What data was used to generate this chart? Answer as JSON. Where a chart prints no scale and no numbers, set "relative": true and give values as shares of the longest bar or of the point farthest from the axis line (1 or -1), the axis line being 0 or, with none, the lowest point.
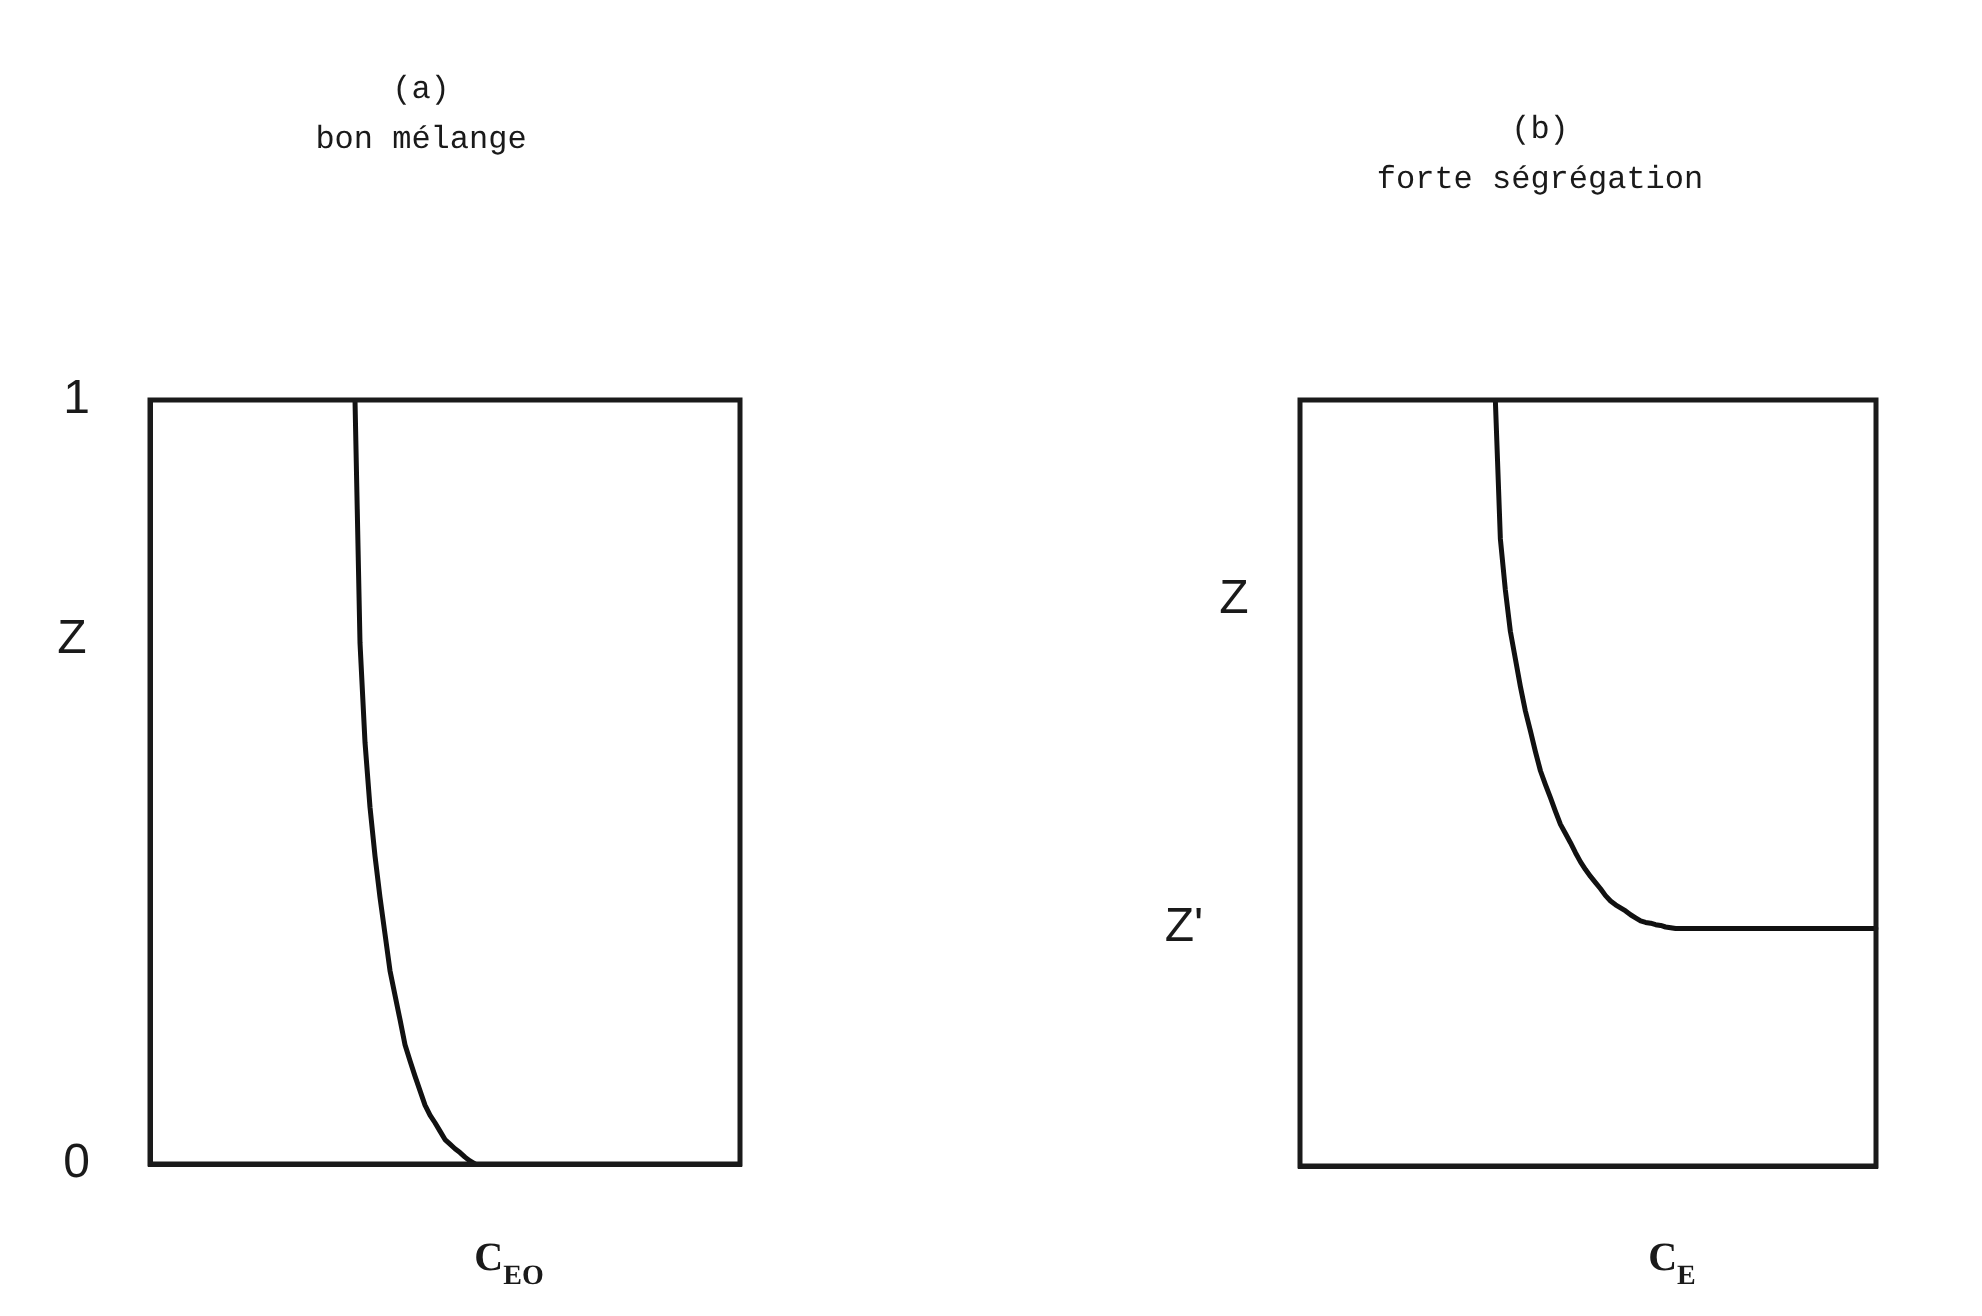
{
  "chart_data": [
    {
      "type": "line",
      "title": "(a)",
      "subtitle": "bon mélange",
      "xlabel": "C$_{EO}$",
      "ylabel": "Z",
      "categories": [
        null,
        null,
        null,
        null,
        null,
        null,
        null,
        null,
        null,
        null,
        null,
        null,
        null,
        null,
        null,
        null,
        null,
        null,
        null,
        null,
        null,
        null,
        null,
        null,
        null,
        null,
        null,
        null,
        null,
        null,
        null,
        null,
        null,
        null,
        null,
        null,
        null,
        null,
        null,
        null,
        null,
        null,
        null,
        null,
        null,
        null,
        null,
        null,
        null,
        null,
        null,
        null,
        null,
        null,
        null,
        null,
        null,
        null,
        null,
        null,
        null,
        null,
        null,
        null,
        null,
        null,
        null,
        null,
        null,
        null,
        null,
        null,
        null,
        null,
        null,
        null,
        null,
        null,
        null,
        null,
        null,
        null,
        null,
        null,
        null,
        null,
        null,
        null,
        null,
        null,
        null,
        null,
        null,
        null,
        null,
        null,
        null,
        null,
        null,
        null,
        null,
        null,
        null,
        null,
        null,
        null,
        null,
        null,
        null,
        null,
        null,
        null,
        null,
        null,
        null,
        null,
        null,
        null,
        null
      ],
      "values": [
        null,
        null,
        null,
        null,
        null,
        null,
        null,
        null,
        null,
        null,
        null,
        null,
        null,
        null,
        null,
        null,
        null,
        null,
        null,
        null,
        null,
        null,
        null,
        null,
        null,
        null,
        null,
        null,
        null,
        null,
        null,
        null,
        null,
        null,
        null,
        null,
        null,
        null,
        null,
        null,
        null,
        1,
        0.682,
        0.552,
        0.467,
        0.403,
        0.349,
        0.301,
        0.253,
        0.221,
        0.189,
        0.156,
        0.135,
        0.115,
        0.096,
        0.077,
        0.064,
        0.054,
        0.043,
        0.032,
        0.026,
        0.02,
        0.015,
        0.009,
        0.004,
        0,
        null,
        null,
        null,
        null,
        null,
        null,
        null,
        null,
        null,
        null,
        null,
        null,
        null,
        null,
        null,
        null,
        null,
        null,
        null,
        null,
        null,
        null,
        null,
        null,
        null,
        null,
        null,
        null,
        null,
        null,
        null,
        null,
        null,
        null,
        null,
        null,
        null,
        null,
        null,
        null,
        null,
        null,
        null,
        null,
        null,
        null,
        null,
        null,
        null,
        null,
        null,
        null,
        null
      ],
      "color": "#111111",
      "ylim": [
        0,
        1
      ],
      "yticks": [
        0,
        1
      ]
    },
    {
      "type": "line",
      "title": "(b)",
      "subtitle": "forte ségrégation",
      "xlabel": "C$_{E}$",
      "ylabel": "Z",
      "categories": [
        null,
        null,
        null,
        null,
        null,
        null,
        null,
        null,
        null,
        null,
        null,
        null,
        null,
        null,
        null,
        null,
        null,
        null,
        null,
        null,
        null,
        null,
        null,
        null,
        null,
        null,
        null,
        null,
        null,
        null,
        null,
        null,
        null,
        null,
        null,
        null,
        null,
        null,
        null,
        null,
        null,
        null,
        null,
        null,
        null,
        null,
        null,
        null,
        null,
        null,
        null,
        null,
        null,
        null,
        null,
        null,
        null,
        null,
        null,
        null,
        null,
        null,
        null,
        null,
        null,
        null,
        null,
        null,
        null,
        null,
        null,
        null,
        null,
        null,
        null,
        null,
        null,
        null,
        null,
        null,
        null,
        null,
        null,
        null,
        null,
        null,
        null,
        null,
        null,
        null,
        null,
        null,
        null,
        null,
        null,
        null,
        null,
        null,
        null,
        null,
        null,
        null,
        null,
        null,
        null,
        null,
        null,
        null,
        null,
        null,
        null,
        null,
        null,
        null,
        null,
        null
      ],
      "values": [
        null,
        null,
        null,
        null,
        null,
        null,
        null,
        null,
        null,
        null,
        null,
        null,
        null,
        null,
        null,
        null,
        null,
        null,
        null,
        null,
        null,
        null,
        null,
        null,
        null,
        null,
        null,
        null,
        null,
        null,
        null,
        null,
        null,
        null,
        null,
        null,
        null,
        null,
        null,
        1,
        0.819,
        0.752,
        0.698,
        0.662,
        0.626,
        0.594,
        0.568,
        0.541,
        0.516,
        0.498,
        0.481,
        0.463,
        0.446,
        0.434,
        0.422,
        0.409,
        0.397,
        0.387,
        0.378,
        0.37,
        0.362,
        0.353,
        0.346,
        0.341,
        0.337,
        0.333,
        0.328,
        0.324,
        0.32,
        0.318,
        0.317,
        0.315,
        0.314,
        0.312,
        0.311,
        0.31,
        0.31,
        0.31,
        0.31,
        0.31,
        0.31,
        0.31,
        0.31,
        0.31,
        0.31,
        0.31,
        0.31,
        0.31,
        0.31,
        0.31,
        0.31,
        0.31,
        0.31,
        0.31,
        0.31,
        0.31,
        0.31,
        0.31,
        0.31,
        0.31,
        0.31,
        0.31,
        0.31,
        0.31,
        0.31,
        0.31,
        0.31,
        0.31,
        0.31,
        0.31,
        0.31,
        0.31,
        0.31,
        0.31,
        0.31,
        0.31
      ],
      "color": "#111111",
      "relative": true,
      "annotations": [
        "Z'"
      ]
    }
  ]
}
